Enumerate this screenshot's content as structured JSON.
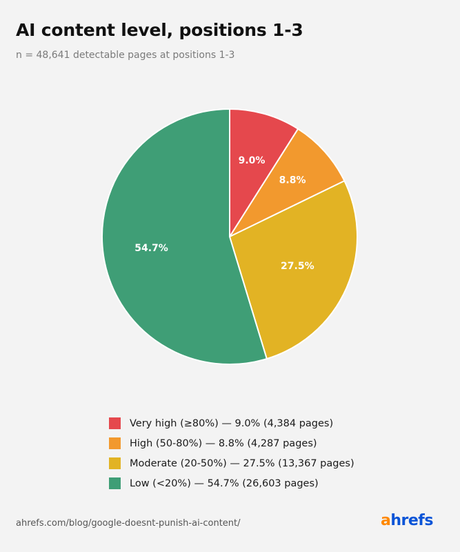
{
  "chart_data": {
    "type": "pie",
    "title": "AI content level, positions 1-3",
    "subtitle": "n = 48,641 detectable pages at positions 1-3",
    "slices": [
      {
        "label": "9.0%",
        "value": 9.0,
        "color": "#e5484d",
        "legend": "Very high (≥80%) — 9.0% (4,384 pages)"
      },
      {
        "label": "8.8%",
        "value": 8.8,
        "color": "#f2992e",
        "legend": "High (50-80%) — 8.8% (4,287 pages)"
      },
      {
        "label": "27.5%",
        "value": 27.5,
        "color": "#e2b324",
        "legend": "Moderate (20-50%) — 27.5% (13,367 pages)"
      },
      {
        "label": "54.7%",
        "value": 54.7,
        "color": "#3f9e76",
        "legend": "Low (<20%) — 54.7% (26,603 pages)"
      }
    ],
    "start": "12 o'clock",
    "direction": "clockwise",
    "legend_position": "bottom"
  },
  "footer": {
    "source": "ahrefs.com/blog/google-doesnt-punish-ai-content/",
    "logo_a": "a",
    "logo_rest": "hrefs"
  }
}
